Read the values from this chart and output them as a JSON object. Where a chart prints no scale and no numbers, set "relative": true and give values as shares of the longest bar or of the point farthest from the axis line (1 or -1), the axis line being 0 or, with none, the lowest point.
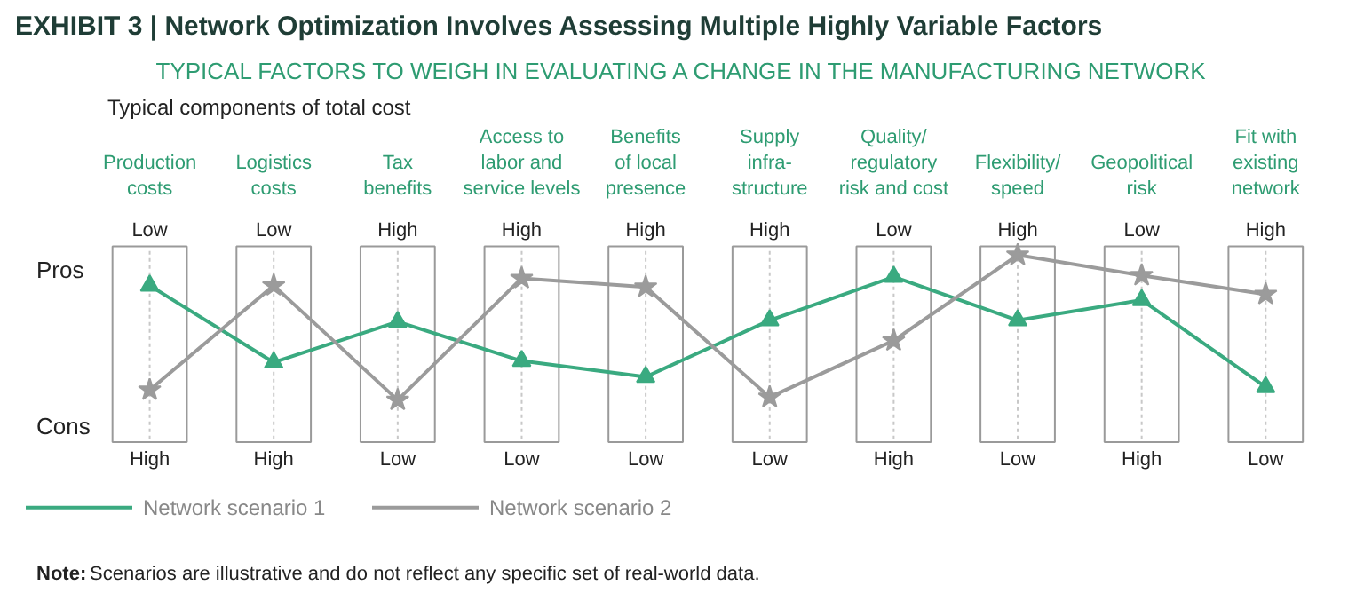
{
  "chart_data": {
    "type": "line",
    "title": "EXHIBIT 3 | Network Optimization Involves Assessing Multiple Highly Variable Factors",
    "subtitle": "TYPICAL FACTORS TO WEIGH IN EVALUATING A CHANGE IN THE MANUFACTURING NETWORK",
    "categories": [
      "Production\ncosts",
      "Logistics\ncosts",
      "Tax\nbenefits",
      "Access to\nlabor and\nservice levels",
      "Benefits\nof local\npresence",
      "Supply\ninfra-\nstructure",
      "Quality/\nregulatory\nrisk and cost",
      "Flexibility/\nspeed",
      "Geopolitical\nrisk",
      "Fit with\nexisting\nnetwork"
    ],
    "relative": true,
    "series": [
      {
        "name": "Network scenario 1",
        "color": "#3aaa80",
        "marker": "triangle",
        "values": [
          0.79,
          0.26,
          0.54,
          0.27,
          0.16,
          0.55,
          0.85,
          0.55,
          0.69,
          0.09
        ]
      },
      {
        "name": "Network scenario 2",
        "color": "#9b9b9b",
        "marker": "star",
        "values": [
          0.07,
          0.79,
          0.0,
          0.84,
          0.78,
          0.02,
          0.41,
          1.0,
          0.86,
          0.73
        ]
      }
    ],
    "legend": "bottom",
    "grid": "x",
    "annotations": [
      "Typical components of total cost",
      "Note: Scenarios are illustrative and do not reflect any specific set of real-world data.",
      "Pros",
      "Cons",
      "Low",
      "Low",
      "High",
      "High",
      "High",
      "High",
      "Low",
      "High",
      "Low",
      "High",
      "High",
      "High",
      "Low",
      "Low",
      "Low",
      "Low",
      "High",
      "Low",
      "High",
      "Low"
    ]
  }
}
